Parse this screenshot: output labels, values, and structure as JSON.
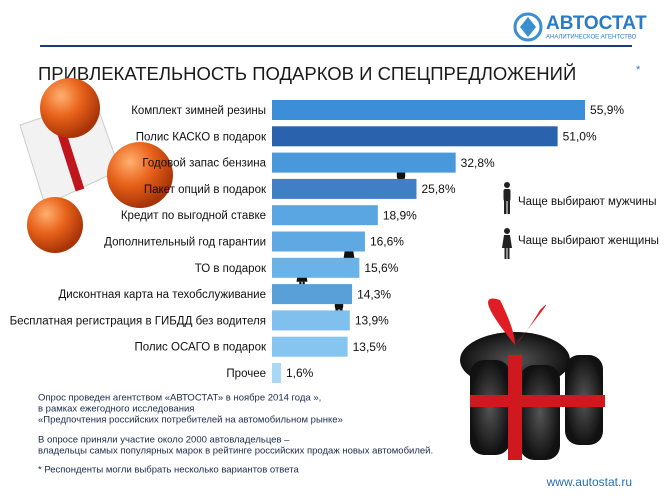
{
  "logo": {
    "name": "АВТОСТАТ",
    "tagline": "АНАЛИТИЧЕСКОЕ АГЕНТСТВО"
  },
  "chart_data": {
    "type": "bar",
    "orientation": "horizontal",
    "title": "ПРИВЛЕКАТЕЛЬНОСТЬ ПОДАРКОВ И СПЕЦПРЕДЛОЖЕНИЙ",
    "title_mark": "*",
    "categories": [
      "Комплект зимней резины",
      "Полис КАСКО в подарок",
      "Годовой запас бензина",
      "Пакет опций в подарок",
      "Кредит по выгодной ставке",
      "Дополнительный год гарантии",
      "ТО в подарок",
      "Дисконтная карта на техобслуживание",
      "Бесплатная регистрация в ГИБДД без водителя",
      "Полис ОСАГО в подарок",
      "Прочее"
    ],
    "values": [
      55.9,
      51.0,
      32.8,
      25.8,
      18.9,
      16.6,
      15.6,
      14.3,
      13.9,
      13.5,
      1.6
    ],
    "value_labels": [
      "55,9%",
      "51,0%",
      "32,8%",
      "25,8%",
      "18,9%",
      "16,6%",
      "15,6%",
      "14,3%",
      "13,9%",
      "13,5%",
      "1,6%"
    ],
    "colors": [
      "#3d8ed8",
      "#2a62ad",
      "#4a98dc",
      "#3f7fc6",
      "#5aa6e2",
      "#5ea8e3",
      "#6ab3e8",
      "#5aa0d8",
      "#7fc0ee",
      "#86c5f0",
      "#a9d8f6"
    ],
    "xlim": [
      0,
      60
    ]
  },
  "legend": {
    "men": "Чаще выбирают мужчины",
    "women": "Чаще выбирают женщины"
  },
  "notes": [
    "Опрос проведен агентством «АВТОСТАТ» в ноябре 2014 года »,",
    "в рамках ежегодного исследования",
    "«Предпочтения российских потребителей на автомобильном рынке»",
    "В опросе приняли участие около 2000 автовладельцев –",
    "владельцы самых популярных марок в рейтинге российских продаж новых автомобилей.",
    "* Респонденты могли выбрать несколько вариантов ответа"
  ],
  "url": "www.autostat.ru"
}
